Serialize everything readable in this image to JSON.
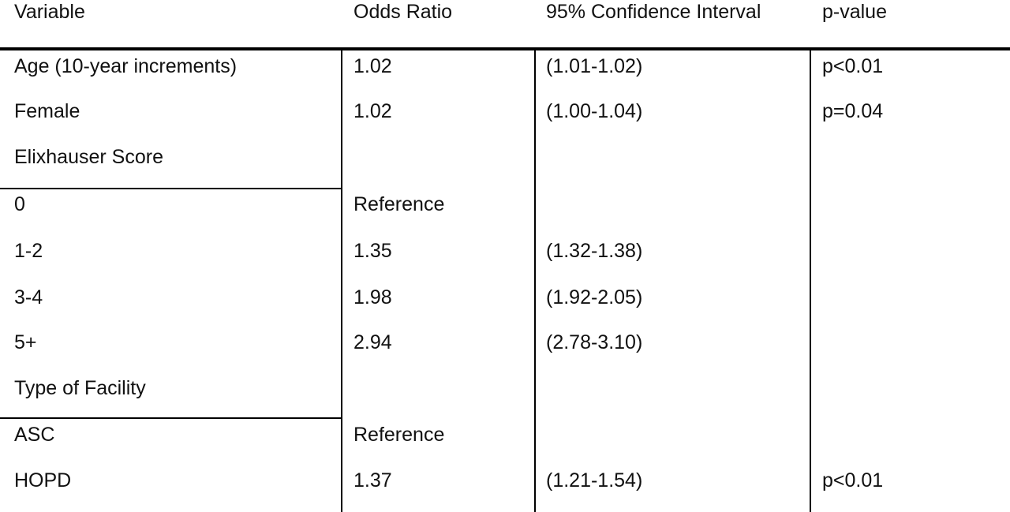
{
  "table": {
    "columns": [
      "Variable",
      "Odds Ratio",
      "95% Confidence Interval",
      "p-value"
    ],
    "rows": [
      [
        "Age (10-year increments)",
        "1.02",
        "(1.01-1.02)",
        "p<0.01"
      ],
      [
        "Female",
        "1.02",
        "(1.00-1.04)",
        "p=0.04"
      ],
      [
        "Elixhauser Score",
        null,
        null,
        null
      ],
      [
        "0",
        "Reference",
        null,
        null
      ],
      [
        "1-2",
        "1.35",
        "(1.32-1.38)",
        null
      ],
      [
        "3-4",
        "1.98",
        "(1.92-2.05)",
        null
      ],
      [
        "5+",
        "2.94",
        "(2.78-3.10)",
        null
      ],
      [
        "Type of Facility",
        null,
        null,
        null
      ],
      [
        "ASC",
        "Reference",
        null,
        null
      ],
      [
        "HOPD",
        "1.37",
        "(1.21-1.54)",
        "p<0.01"
      ]
    ]
  }
}
